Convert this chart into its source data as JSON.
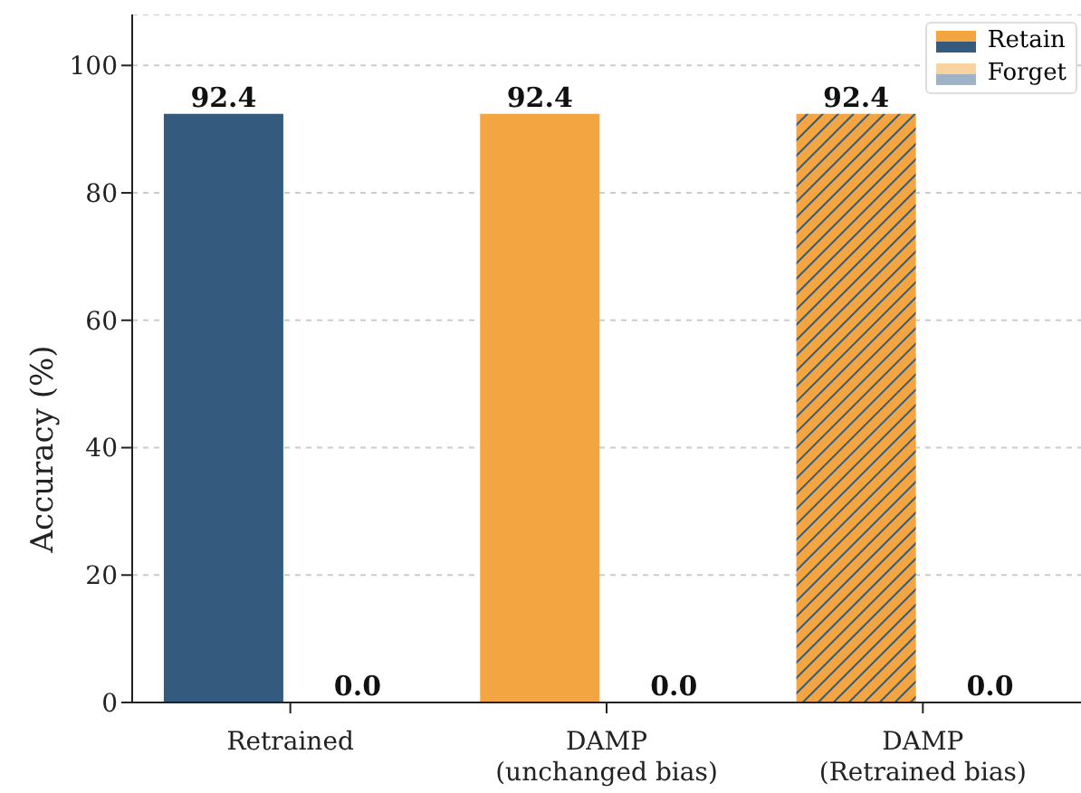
{
  "chart_data": {
    "type": "bar",
    "ylabel": "Accuracy (%)",
    "categories": [
      "Retrained",
      "DAMP\n(unchanged bias)",
      "DAMP\n(Retrained bias)"
    ],
    "series": [
      {
        "name": "Retain",
        "colors": [
          "#345b7d",
          "#f3a541",
          "#f3a541"
        ],
        "values": [
          92.4,
          92.4,
          92.4
        ],
        "value_labels": [
          "92.4",
          "92.4",
          "92.4"
        ]
      },
      {
        "name": "Forget",
        "colors": [
          "#9fb3c6",
          "#f8d3a0",
          "#f8d3a0"
        ],
        "values": [
          0,
          0,
          0
        ],
        "value_labels": [
          "0.0",
          "0.0",
          "0.0"
        ]
      }
    ],
    "ylim": [
      0,
      108
    ],
    "yticks": [
      0,
      20,
      40,
      60,
      80,
      100
    ],
    "grid": "y",
    "legend": "top right"
  }
}
